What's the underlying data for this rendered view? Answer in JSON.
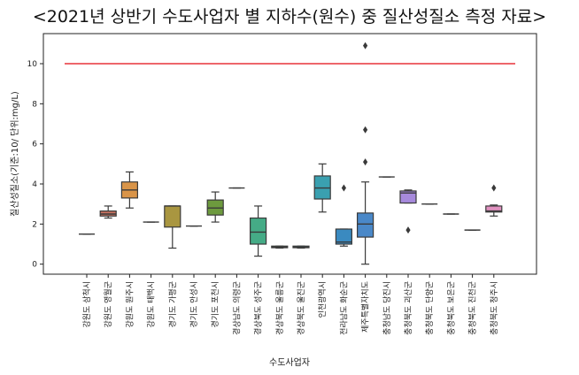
{
  "chart_data": {
    "type": "box",
    "title": "<2021년 상반기 수도사업자 별 지하수(원수) 중 질산성질소 측정 자료>",
    "xlabel": "수도사업자",
    "ylabel": "질산성질소(기준:10/ 단위:mg/L)",
    "ylim": [
      -0.5,
      11.5
    ],
    "yticks": [
      0,
      2,
      4,
      6,
      8,
      10
    ],
    "reference_line": {
      "value": 10,
      "color": "#e8333a"
    },
    "categories": [
      "강원도 삼척시",
      "강원도 영월군",
      "강원도 원주시",
      "강원도 태백시",
      "경기도 가평군",
      "경기도 안성시",
      "경기도 포천시",
      "경상남도 의령군",
      "경상북도 성주군",
      "경상북도 울릉군",
      "경상북도 울진군",
      "인천광역시",
      "전라남도 화순군",
      "제주특별자치도",
      "충청남도 당진시",
      "충청북도 괴산군",
      "충청북도 단양군",
      "충청북도 보은군",
      "충청북도 진천군",
      "충청북도 청주시"
    ],
    "boxes": [
      {
        "min": 1.5,
        "q1": 1.5,
        "median": 1.5,
        "q3": 1.5,
        "max": 1.5,
        "outliers": [],
        "color": "#3274a1"
      },
      {
        "min": 2.3,
        "q1": 2.4,
        "median": 2.5,
        "q3": 2.65,
        "max": 2.9,
        "outliers": [],
        "color": "#c4705f"
      },
      {
        "min": 2.8,
        "q1": 3.3,
        "median": 3.7,
        "q3": 4.1,
        "max": 4.6,
        "outliers": [],
        "color": "#d99448"
      },
      {
        "min": 2.1,
        "q1": 2.1,
        "median": 2.1,
        "q3": 2.1,
        "max": 2.1,
        "outliers": [],
        "color": "#5a8a5a"
      },
      {
        "min": 0.8,
        "q1": 1.85,
        "median": 2.9,
        "q3": 2.9,
        "max": 2.9,
        "outliers": [],
        "color": "#a99640"
      },
      {
        "min": 1.9,
        "q1": 1.9,
        "median": 1.9,
        "q3": 1.9,
        "max": 1.9,
        "outliers": [],
        "color": "#8a8a8a"
      },
      {
        "min": 2.1,
        "q1": 2.45,
        "median": 2.8,
        "q3": 3.2,
        "max": 3.6,
        "outliers": [],
        "color": "#6d9a3e"
      },
      {
        "min": 3.8,
        "q1": 3.8,
        "median": 3.8,
        "q3": 3.8,
        "max": 3.8,
        "outliers": [],
        "color": "#3d9a8a"
      },
      {
        "min": 0.4,
        "q1": 1.0,
        "median": 1.6,
        "q3": 2.3,
        "max": 2.9,
        "outliers": [],
        "color": "#45ab86"
      },
      {
        "min": 0.8,
        "q1": 0.82,
        "median": 0.85,
        "q3": 0.9,
        "max": 0.9,
        "outliers": [],
        "color": "#5aa06a"
      },
      {
        "min": 0.8,
        "q1": 0.82,
        "median": 0.85,
        "q3": 0.9,
        "max": 0.9,
        "outliers": [],
        "color": "#4aa090"
      },
      {
        "min": 2.6,
        "q1": 3.25,
        "median": 3.8,
        "q3": 4.4,
        "max": 5.0,
        "outliers": [],
        "color": "#3aa0b0"
      },
      {
        "min": 0.9,
        "q1": 1.0,
        "median": 1.1,
        "q3": 1.75,
        "max": 1.75,
        "outliers": [
          3.8
        ],
        "color": "#3a8ac0"
      },
      {
        "min": 0.0,
        "q1": 1.35,
        "median": 2.0,
        "q3": 2.55,
        "max": 4.1,
        "outliers": [
          5.1,
          6.7,
          10.9
        ],
        "color": "#4a88c8"
      },
      {
        "min": 4.35,
        "q1": 4.35,
        "median": 4.35,
        "q3": 4.35,
        "max": 4.35,
        "outliers": [],
        "color": "#6a7ac0"
      },
      {
        "min": 3.05,
        "q1": 3.05,
        "median": 3.55,
        "q3": 3.65,
        "max": 3.7,
        "outliers": [
          1.7
        ],
        "color": "#a78adc"
      },
      {
        "min": 3.0,
        "q1": 3.0,
        "median": 3.0,
        "q3": 3.0,
        "max": 3.0,
        "outliers": [],
        "color": "#b08ac8"
      },
      {
        "min": 2.5,
        "q1": 2.5,
        "median": 2.5,
        "q3": 2.5,
        "max": 2.5,
        "outliers": [],
        "color": "#c08ab8"
      },
      {
        "min": 1.7,
        "q1": 1.7,
        "median": 1.7,
        "q3": 1.7,
        "max": 1.7,
        "outliers": [],
        "color": "#d08ab0"
      },
      {
        "min": 2.4,
        "q1": 2.6,
        "median": 2.65,
        "q3": 2.9,
        "max": 2.95,
        "outliers": [
          3.8
        ],
        "color": "#e191c0"
      }
    ]
  }
}
